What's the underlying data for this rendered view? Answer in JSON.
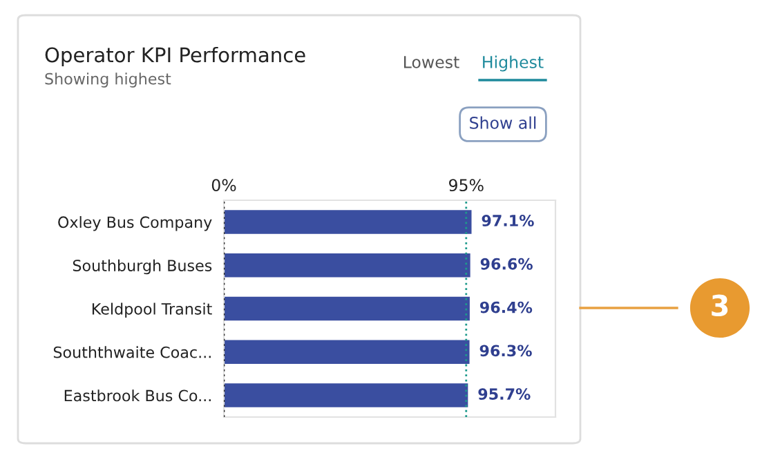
{
  "chart_data": {
    "type": "bar",
    "orientation": "horizontal",
    "title": "Operator KPI Performance",
    "subtitle": "Showing highest",
    "categories": [
      "Oxley Bus Company",
      "Southburgh Buses",
      "Keldpool Transit",
      "Souththwaite Coac...",
      "Eastbrook Bus Co..."
    ],
    "values": [
      97.1,
      96.6,
      96.4,
      96.3,
      95.7
    ],
    "value_labels": [
      "97.1%",
      "96.6%",
      "96.4%",
      "96.3%",
      "95.7%"
    ],
    "color": "#3a4ea0",
    "xlim": [
      0,
      130
    ],
    "xticks": [
      {
        "value": 0,
        "label": "0%"
      },
      {
        "value": 95,
        "label": "95%"
      }
    ],
    "ref_lines": [
      {
        "axis": "x",
        "value": 0,
        "color": "#333333",
        "line_style": "dotted"
      },
      {
        "axis": "x",
        "value": 95,
        "color": "#1e9a8c",
        "line_style": "dotted"
      }
    ],
    "grid": false,
    "legend": false,
    "annotations": [
      "Lowest",
      "Highest",
      "Show all",
      "3"
    ]
  }
}
